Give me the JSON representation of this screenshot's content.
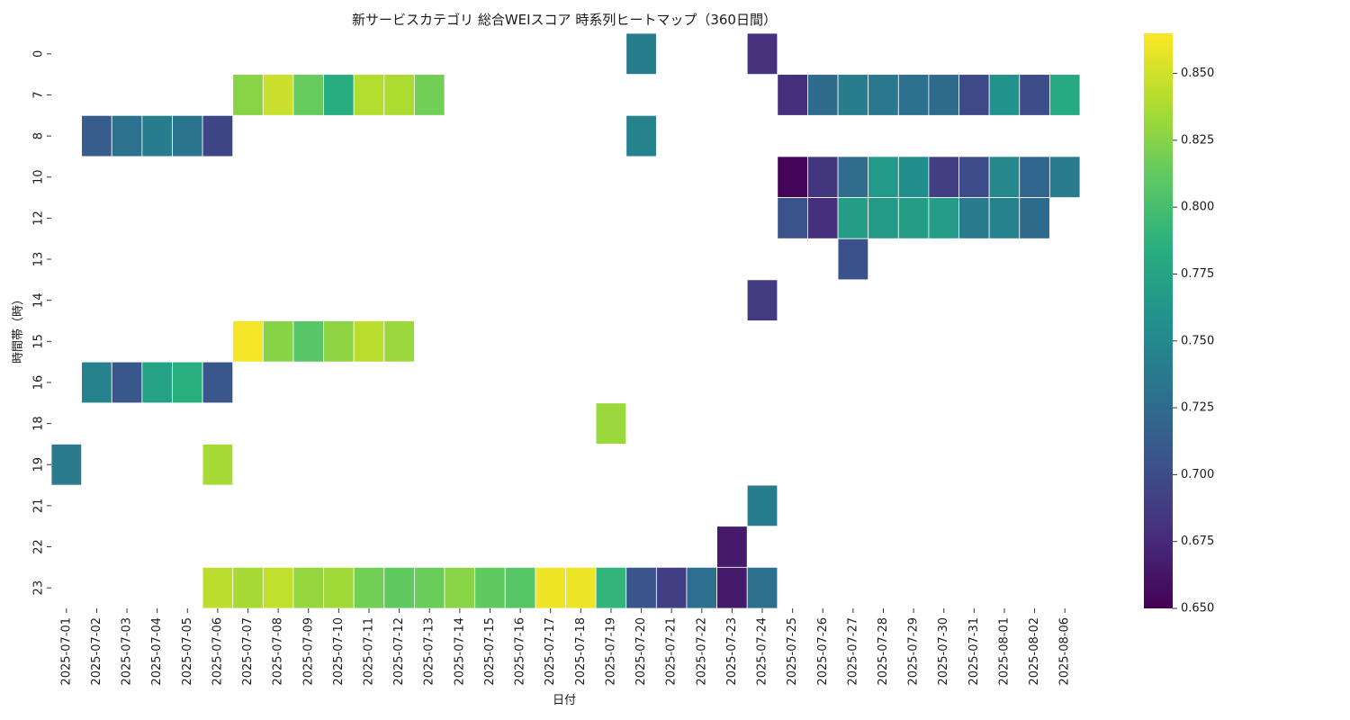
{
  "chart_data": {
    "type": "heatmap",
    "title": "新サービスカテゴリ 総合WEIスコア 時系列ヒートマップ（360日間）",
    "xlabel": "日付",
    "ylabel": "時間帯（時）",
    "x": [
      "2025-07-01",
      "2025-07-02",
      "2025-07-03",
      "2025-07-04",
      "2025-07-05",
      "2025-07-06",
      "2025-07-07",
      "2025-07-08",
      "2025-07-09",
      "2025-07-10",
      "2025-07-11",
      "2025-07-12",
      "2025-07-13",
      "2025-07-14",
      "2025-07-15",
      "2025-07-16",
      "2025-07-17",
      "2025-07-18",
      "2025-07-19",
      "2025-07-20",
      "2025-07-21",
      "2025-07-22",
      "2025-07-23",
      "2025-07-24",
      "2025-07-25",
      "2025-07-26",
      "2025-07-27",
      "2025-07-28",
      "2025-07-29",
      "2025-07-30",
      "2025-07-31",
      "2025-08-01",
      "2025-08-02",
      "2025-08-06"
    ],
    "y": [
      "0",
      "7",
      "8",
      "10",
      "12",
      "13",
      "14",
      "15",
      "16",
      "18",
      "19",
      "21",
      "22",
      "23"
    ],
    "colormap": "viridis",
    "vmin": 0.65,
    "vmax": 0.865,
    "colorbar_ticks": [
      "0.650",
      "0.675",
      "0.700",
      "0.725",
      "0.750",
      "0.775",
      "0.800",
      "0.825",
      "0.850"
    ],
    "values": [
      [
        null,
        null,
        null,
        null,
        null,
        null,
        null,
        null,
        null,
        null,
        null,
        null,
        null,
        null,
        null,
        null,
        null,
        null,
        null,
        0.74,
        null,
        null,
        null,
        0.68,
        null,
        null,
        null,
        null,
        null,
        null,
        null,
        null,
        null,
        null
      ],
      [
        null,
        null,
        null,
        null,
        null,
        null,
        0.826,
        0.848,
        0.814,
        0.783,
        0.84,
        0.838,
        0.818,
        null,
        null,
        null,
        null,
        null,
        null,
        null,
        null,
        null,
        null,
        null,
        0.678,
        0.725,
        0.74,
        0.735,
        0.728,
        0.725,
        0.697,
        0.758,
        0.7,
        0.78
      ],
      [
        null,
        0.713,
        0.73,
        0.74,
        0.732,
        0.695,
        null,
        null,
        null,
        null,
        null,
        null,
        null,
        null,
        null,
        null,
        null,
        null,
        null,
        0.745,
        null,
        null,
        null,
        null,
        null,
        null,
        null,
        null,
        null,
        null,
        null,
        null,
        null,
        null
      ],
      [
        null,
        null,
        null,
        null,
        null,
        null,
        null,
        null,
        null,
        null,
        null,
        null,
        null,
        null,
        null,
        null,
        null,
        null,
        null,
        null,
        null,
        null,
        null,
        null,
        0.652,
        0.685,
        0.726,
        0.765,
        0.755,
        0.69,
        0.7,
        0.75,
        0.72,
        0.738
      ],
      [
        null,
        null,
        null,
        null,
        null,
        null,
        null,
        null,
        null,
        null,
        null,
        null,
        null,
        null,
        null,
        null,
        null,
        null,
        null,
        null,
        null,
        null,
        null,
        null,
        0.705,
        0.678,
        0.77,
        0.766,
        0.77,
        0.768,
        0.738,
        0.745,
        0.725,
        null
      ],
      [
        null,
        null,
        null,
        null,
        null,
        null,
        null,
        null,
        null,
        null,
        null,
        null,
        null,
        null,
        null,
        null,
        null,
        null,
        null,
        null,
        null,
        null,
        null,
        null,
        null,
        null,
        0.703,
        null,
        null,
        null,
        null,
        null,
        null,
        null
      ],
      [
        null,
        null,
        null,
        null,
        null,
        null,
        null,
        null,
        null,
        null,
        null,
        null,
        null,
        null,
        null,
        null,
        null,
        null,
        null,
        null,
        null,
        null,
        null,
        0.687,
        null,
        null,
        null,
        null,
        null,
        null,
        null,
        null,
        null,
        null
      ],
      [
        null,
        null,
        null,
        null,
        null,
        null,
        0.862,
        0.825,
        0.808,
        0.828,
        0.842,
        0.832,
        null,
        null,
        null,
        null,
        null,
        null,
        null,
        null,
        null,
        null,
        null,
        null,
        null,
        null,
        null,
        null,
        null,
        null,
        null,
        null,
        null,
        null
      ],
      [
        null,
        0.745,
        0.708,
        0.772,
        0.785,
        0.708,
        null,
        null,
        null,
        null,
        null,
        null,
        null,
        null,
        null,
        null,
        null,
        null,
        null,
        null,
        null,
        null,
        null,
        null,
        null,
        null,
        null,
        null,
        null,
        null,
        null,
        null,
        null,
        null
      ],
      [
        null,
        null,
        null,
        null,
        null,
        null,
        null,
        null,
        null,
        null,
        null,
        null,
        null,
        null,
        null,
        null,
        null,
        null,
        0.832,
        null,
        null,
        null,
        null,
        null,
        null,
        null,
        null,
        null,
        null,
        null,
        null,
        null,
        null,
        null
      ],
      [
        0.738,
        null,
        null,
        null,
        null,
        0.836,
        null,
        null,
        null,
        null,
        null,
        null,
        null,
        null,
        null,
        null,
        null,
        null,
        null,
        null,
        null,
        null,
        null,
        null,
        null,
        null,
        null,
        null,
        null,
        null,
        null,
        null,
        null,
        null
      ],
      [
        null,
        null,
        null,
        null,
        null,
        null,
        null,
        null,
        null,
        null,
        null,
        null,
        null,
        null,
        null,
        null,
        null,
        null,
        null,
        null,
        null,
        null,
        null,
        0.74,
        null,
        null,
        null,
        null,
        null,
        null,
        null,
        null,
        null,
        null
      ],
      [
        null,
        null,
        null,
        null,
        null,
        null,
        null,
        null,
        null,
        null,
        null,
        null,
        null,
        null,
        null,
        null,
        null,
        null,
        null,
        null,
        null,
        null,
        0.665,
        null,
        null,
        null,
        null,
        null,
        null,
        null,
        null,
        null,
        null,
        null
      ],
      [
        null,
        null,
        null,
        null,
        null,
        0.843,
        0.836,
        0.845,
        0.83,
        0.834,
        0.818,
        0.812,
        0.815,
        0.826,
        0.812,
        0.808,
        0.86,
        0.86,
        0.79,
        0.706,
        0.69,
        0.727,
        0.665,
        0.728,
        null,
        null,
        null,
        null,
        null,
        null,
        null,
        null,
        null,
        null
      ]
    ]
  }
}
